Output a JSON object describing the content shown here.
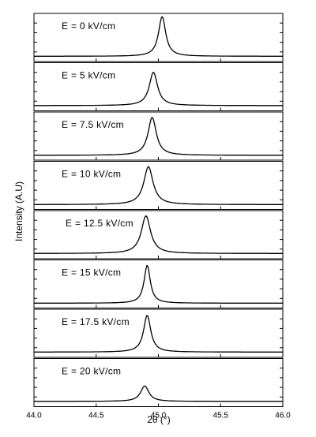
{
  "chart_data": {
    "type": "line",
    "layout": "stacked-panels",
    "xlabel": "2θ (°)",
    "ylabel": "Intensity (A.U)",
    "xlim": [
      44.0,
      46.0
    ],
    "x_ticks": [
      "44.0",
      "44.5",
      "45.0",
      "45.5",
      "46.0"
    ],
    "y_ticks_labeled": false,
    "panels": [
      {
        "label": "E = 0 kV/cm",
        "peak_center": 45.03,
        "peak_height": 1.0,
        "fwhm": 0.07,
        "baseline": 0.05
      },
      {
        "label": "E = 5 kV/cm",
        "peak_center": 44.96,
        "peak_height": 0.85,
        "fwhm": 0.08,
        "baseline": 0.05
      },
      {
        "label": "E = 7.5 kV/cm",
        "peak_center": 44.95,
        "peak_height": 0.95,
        "fwhm": 0.08,
        "baseline": 0.04
      },
      {
        "label": "E = 10 kV/cm",
        "peak_center": 44.92,
        "peak_height": 0.95,
        "fwhm": 0.09,
        "baseline": 0.04
      },
      {
        "label": "E = 12.5 kV/cm",
        "peak_center": 44.9,
        "peak_height": 0.95,
        "fwhm": 0.09,
        "baseline": 0.05
      },
      {
        "label": "E = 15 kV/cm",
        "peak_center": 44.91,
        "peak_height": 0.95,
        "fwhm": 0.06,
        "baseline": 0.04
      },
      {
        "label": "E = 17.5 kV/cm",
        "peak_center": 44.91,
        "peak_height": 0.93,
        "fwhm": 0.07,
        "baseline": 0.05
      },
      {
        "label": "E = 20 kV/cm",
        "peak_center": 44.89,
        "peak_height": 0.42,
        "fwhm": 0.08,
        "baseline": 0.05
      }
    ]
  }
}
